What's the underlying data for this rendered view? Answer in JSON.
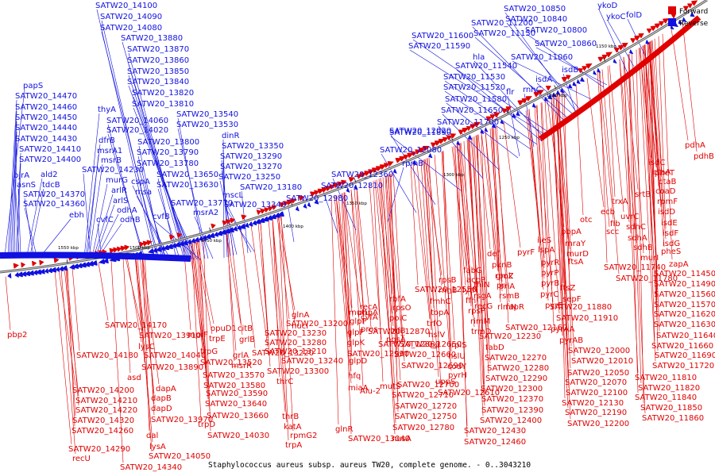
{
  "caption": "Staphylococcus aureus subsp. aureus TW20, complete genome. - 0..3043210",
  "legend": [
    {
      "label": "Forward",
      "color": "#e00000"
    },
    {
      "label": "Reverse",
      "color": "#1010e0"
    }
  ],
  "colors": {
    "forward": "#e00000",
    "reverse": "#1010e0",
    "backbone": "#7f7f7f"
  },
  "kbp_ticks": [
    "1150 kbp",
    "1200 kbp",
    "1250 kbp",
    "1300 kbp",
    "1350 kbp",
    "1400 kbp",
    "1450 kbp",
    "1500 kbp",
    "1550 kbp"
  ],
  "reverse_labels": [
    "SATW20_14100",
    "SATW20_14090",
    "SATW20_14080",
    "SATW20_13880",
    "SATW20_13870",
    "SATW20_13860",
    "SATW20_13850",
    "SATW20_13840",
    "SATW20_13820",
    "SATW20_13810",
    "papS",
    "SATW20_14470",
    "SATW20_14460",
    "SATW20_14450",
    "SATW20_14440",
    "SATW20_14430",
    "SATW20_14410",
    "SATW20_14400",
    "bjrA",
    "asnS",
    "ald2",
    "tdcB",
    "SATW20_14370",
    "SATW20_14360",
    "ebh",
    "thyA",
    "dfrB",
    "msrA1",
    "msrB",
    "SATW20_14230",
    "murG",
    "arlR",
    "arlS",
    "odhA",
    "odhB",
    "cvfC",
    "SATW20_14060",
    "SATW20_14020",
    "SATW20_13800",
    "SATW20_13790",
    "SATW20_13780",
    "cspA",
    "msa",
    "SATW20_13650",
    "SATW20_13630",
    "SATW20_13770",
    "cvfB",
    "msrA2",
    "SATW20_13540",
    "SATW20_13530",
    "dinR",
    "SATW20_13350",
    "SATW20_13290",
    "SATW20_13270",
    "SATW20_13250",
    "SATW20_13180",
    "mscL",
    "SATW20_13340",
    "SATW20_12980",
    "SATW20_12810",
    "SATW20_12360",
    "rpmB",
    "SATW20_12080",
    "SATW20_12020",
    "SATW20_11890",
    "SATW20_11700",
    "SATW20_11650",
    "SATW20_11580",
    "flr",
    "SATW20_11520",
    "rnhC",
    "SATW20_11530",
    "SATW20_11540",
    "hla",
    "SATW20_11590",
    "SATW20_11600",
    "SATW20_11200",
    "SATW20_11150",
    "SATW20_10850",
    "SATW20_10840",
    "ykoD",
    "ykoC",
    "folD",
    "SATW20_10800",
    "SATW20_10860",
    "SATW20_11060",
    "isdB",
    "isdA"
  ],
  "forward_labels": [
    "pdhA",
    "pdhB",
    "ctaA",
    "ctaB",
    "coaD",
    "rpmF",
    "srtB",
    "isdC",
    "pheT",
    "trxA",
    "ecb",
    "uvrC",
    "isdD",
    "isdE",
    "isdF",
    "isdG",
    "fib",
    "scc",
    "sdhC",
    "sdhA",
    "sdhB",
    "pheS",
    "murI",
    "zapA",
    "otc",
    "pbpA",
    "mraY",
    "murD",
    "ftsA",
    "SATW20_11740",
    "SATW20_11780",
    "SATW20_11450",
    "SATW20_11490",
    "SATW20_11560",
    "SATW20_11570",
    "SATW20_11620",
    "SATW20_11630",
    "SATW20_11640",
    "SATW20_11660",
    "SATW20_11690",
    "SATW20_11720",
    "SATW20_11810",
    "SATW20_11820",
    "SATW20_11840",
    "SATW20_11850",
    "SATW20_11860",
    "ileS",
    "lspA",
    "pyrR",
    "pyrP",
    "pyrB",
    "pyrC",
    "ftsZ",
    "sepF",
    "pyrE",
    "SATW20_11880",
    "SATW20_11910",
    "pyrAA",
    "pyrAB",
    "SATW20_12000",
    "SATW20_12010",
    "SATW20_12050",
    "SATW20_12070",
    "SATW20_12100",
    "SATW20_12130",
    "SATW20_12190",
    "SATW20_12200",
    "def",
    "pknB",
    "gmk",
    "rpoZ",
    "pri",
    "priA",
    "rsmB",
    "rlmN",
    "pyrF",
    "fabG",
    "acpP",
    "thiN",
    "rsgA",
    "recG",
    "fapR",
    "SATW20_12160",
    "SATW20_12230",
    "fabD",
    "SATW20_12270",
    "SATW20_12280",
    "SATW20_12290",
    "SATW20_12300",
    "SATW20_12370",
    "SATW20_12390",
    "SATW20_12400",
    "SATW20_12430",
    "SATW20_12460",
    "SATW20_12550",
    "rpsB",
    "rnhB",
    "lytN",
    "ffh",
    "rpsP",
    "rimM",
    "trmD",
    "rplS",
    "fmhC",
    "topA",
    "trfO",
    "hslV",
    "tsf",
    "hslU",
    "codY",
    "pyrH",
    "uppS",
    "SATW20_12610",
    "SATW20_12650",
    "SATW20_12660",
    "SATW20_12690",
    "SATW20_12700",
    "SATW20_12710",
    "SATW20_12720",
    "SATW20_12750",
    "SATW20_12780",
    "nusA",
    "rbfA",
    "rpsO",
    "polC",
    "infB",
    "pgsA",
    "recA",
    "cvfA",
    "pros",
    "pnpA",
    "SATW20_12870",
    "SATW20_12880",
    "mutS",
    "mutL",
    "glpP",
    "glpF",
    "glpK",
    "glpD",
    "hfq",
    "miaA",
    "SATW20_12990",
    "Alu-2",
    "SATW20_13040",
    "glnR",
    "glnA",
    "nucI",
    "SATW20_13200",
    "SATW20_13230",
    "SATW20_13280",
    "SATW20_13210",
    "SATW20_13220",
    "SATW20_13240",
    "SATW20_13300",
    "thrC",
    "thrB",
    "katA",
    "rpmG2",
    "trpA",
    "mprF",
    "opuD1",
    "citB",
    "grlB",
    "grlA",
    "msrR",
    "trpE",
    "trpG",
    "SATW20_13520",
    "SATW20_13570",
    "SATW20_13580",
    "SATW20_13590",
    "SATW20_13640",
    "SATW20_13660",
    "trpD",
    "SATW20_14030",
    "SATW20_13910",
    "lysC",
    "SATW20_14040",
    "SATW20_13890",
    "asd",
    "dapA",
    "dapB",
    "dapD",
    "SATW20_13970",
    "dal",
    "lysA",
    "SATW20_14050",
    "SATW20_14340",
    "SATW20_14170",
    "SATW20_14180",
    "SATW20_14200",
    "SATW20_14210",
    "SATW20_14220",
    "SATW20_14320",
    "SATW20_14260",
    "SATW20_14290",
    "recU",
    "pbp2"
  ]
}
